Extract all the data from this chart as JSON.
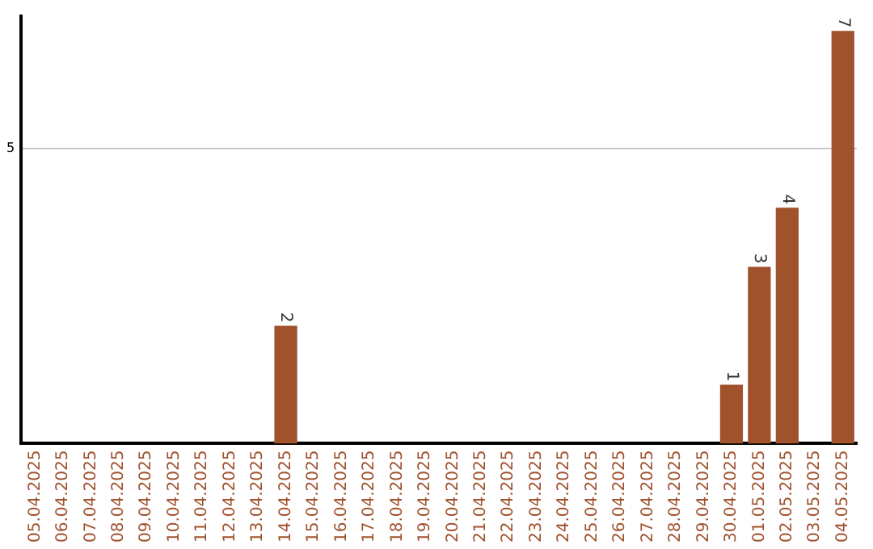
{
  "chart_data": {
    "type": "bar",
    "categories": [
      "05.04.2025",
      "06.04.2025",
      "07.04.2025",
      "08.04.2025",
      "09.04.2025",
      "10.04.2025",
      "11.04.2025",
      "12.04.2025",
      "13.04.2025",
      "14.04.2025",
      "15.04.2025",
      "16.04.2025",
      "17.04.2025",
      "18.04.2025",
      "19.04.2025",
      "20.04.2025",
      "21.04.2025",
      "22.04.2025",
      "23.04.2025",
      "24.04.2025",
      "25.04.2025",
      "26.04.2025",
      "27.04.2025",
      "28.04.2025",
      "29.04.2025",
      "30.04.2025",
      "01.05.2025",
      "02.05.2025",
      "03.05.2025",
      "04.05.2025"
    ],
    "values": [
      null,
      null,
      null,
      null,
      null,
      null,
      null,
      null,
      null,
      2,
      null,
      null,
      null,
      null,
      null,
      null,
      null,
      null,
      null,
      null,
      null,
      null,
      null,
      null,
      null,
      1,
      3,
      4,
      null,
      7
    ],
    "color": "#a0522d",
    "ylim": [
      0,
      7.25
    ],
    "yticks": [
      5
    ],
    "grid": "y",
    "data_labels": true,
    "legend": false
  }
}
